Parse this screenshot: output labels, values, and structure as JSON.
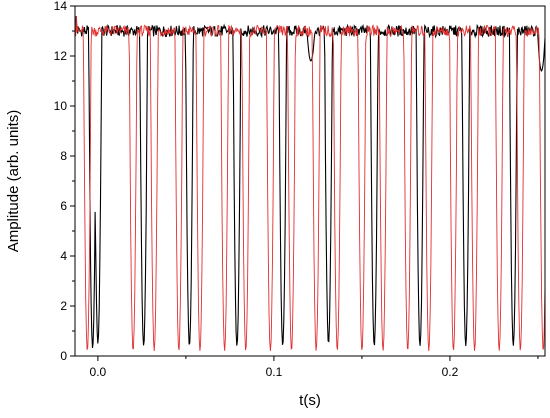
{
  "chart_data": {
    "type": "line",
    "title": "",
    "xlabel": "t(s)",
    "ylabel": "Amplitude (arb. units)",
    "xlim": [
      -0.013,
      0.254
    ],
    "ylim": [
      0,
      14
    ],
    "x_ticks": [
      0.0,
      0.1,
      0.2
    ],
    "x_tick_labels": [
      "0.0",
      "0.1",
      "0.2"
    ],
    "y_ticks": [
      0,
      2,
      4,
      6,
      8,
      10,
      12,
      14
    ],
    "y_tick_labels": [
      "0",
      "2",
      "4",
      "6",
      "8",
      "10",
      "12",
      "14"
    ],
    "grid": false,
    "baseline": 13.0,
    "series": [
      {
        "color": "#000000",
        "dips": [
          [
            -0.003,
            0.3
          ],
          [
            0.0,
            0.5
          ],
          [
            0.026,
            0.4
          ],
          [
            0.052,
            0.4
          ],
          [
            0.079,
            0.4
          ],
          [
            0.105,
            0.4
          ],
          [
            0.121,
            11.8
          ],
          [
            0.131,
            0.5
          ],
          [
            0.157,
            0.4
          ],
          [
            0.183,
            0.4
          ],
          [
            0.209,
            0.4
          ],
          [
            0.236,
            0.4
          ],
          [
            0.252,
            11.4
          ]
        ]
      },
      {
        "color": "#e03030",
        "dips": [
          [
            -0.006,
            0.2
          ],
          [
            0.02,
            0.2
          ],
          [
            0.032,
            0.2
          ],
          [
            0.046,
            0.2
          ],
          [
            0.058,
            0.2
          ],
          [
            0.072,
            0.2
          ],
          [
            0.084,
            0.2
          ],
          [
            0.098,
            0.2
          ],
          [
            0.11,
            0.2
          ],
          [
            0.124,
            0.2
          ],
          [
            0.136,
            0.2
          ],
          [
            0.15,
            0.2
          ],
          [
            0.162,
            0.2
          ],
          [
            0.176,
            0.2
          ],
          [
            0.188,
            0.2
          ],
          [
            0.202,
            0.2
          ],
          [
            0.214,
            0.2
          ],
          [
            0.228,
            0.2
          ],
          [
            0.24,
            0.2
          ],
          [
            0.253,
            0.2
          ]
        ]
      }
    ]
  }
}
